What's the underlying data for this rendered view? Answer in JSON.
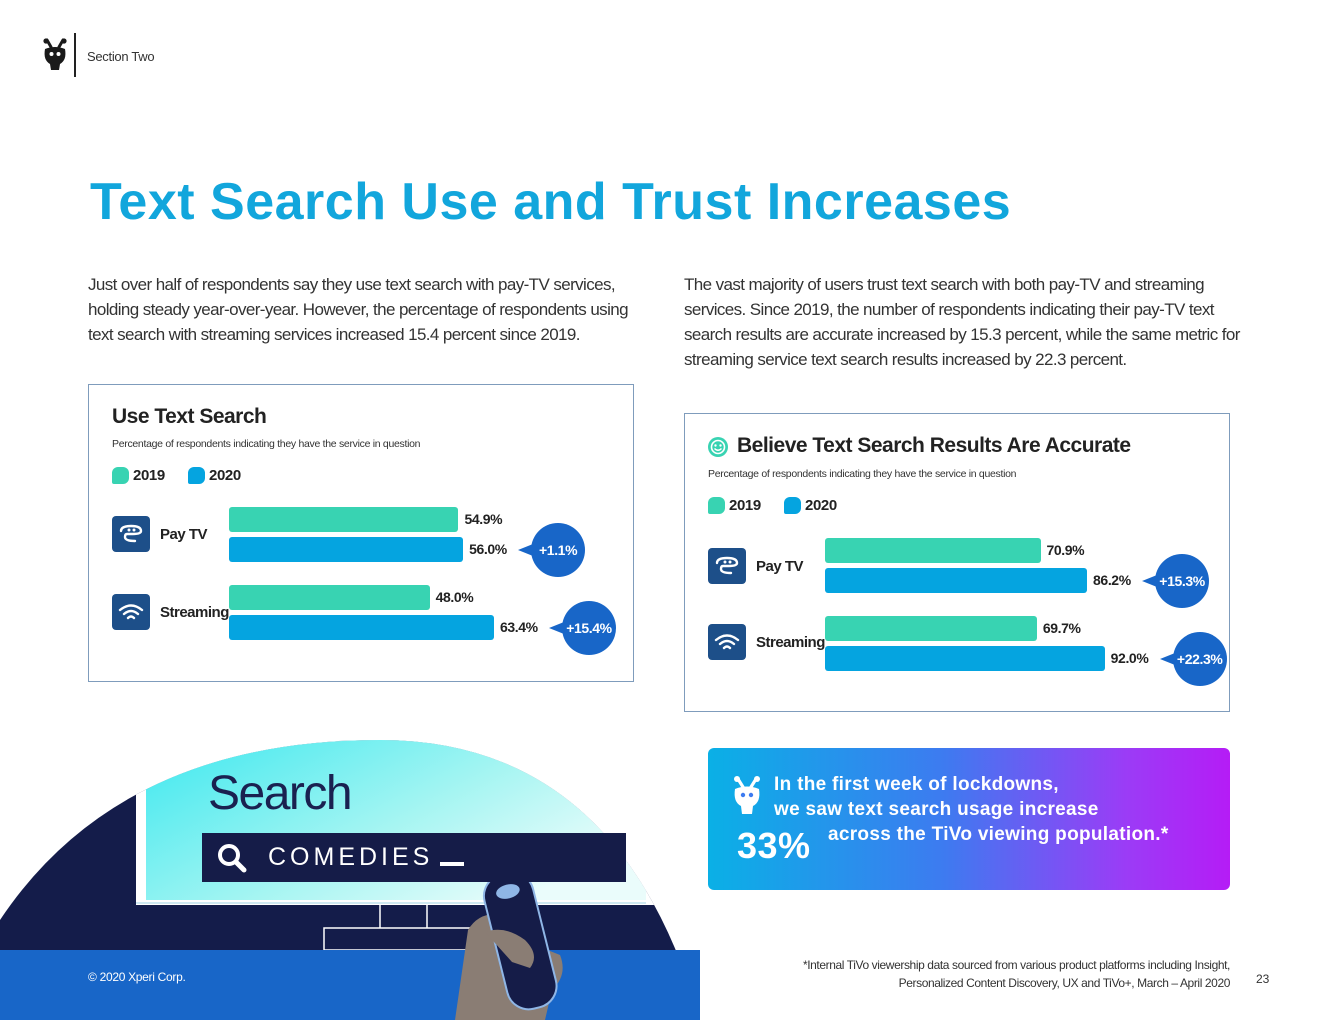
{
  "header": {
    "section": "Section Two"
  },
  "title": "Text Search Use and Trust Increases",
  "paragraph_left": "Just over half of respondents say they use text search with pay-TV services, holding steady year-over-year. However, the percentage of respondents using text search with streaming services increased 15.4 percent since 2019.",
  "paragraph_right": "The vast majority of users trust text search with both pay-TV and streaming services. Since 2019, the number of respondents indicating their pay-TV text search results are accurate increased by 15.3 percent,  while the same metric for streaming service text search results increased by 22.3 percent.",
  "colors": {
    "title": "#12a6dc",
    "y2019": "#38d3b2",
    "y2020": "#05a4e0",
    "delta": "#1866c8",
    "icon_bg": "#1d4f89"
  },
  "chart_data": [
    {
      "type": "bar",
      "title": "Use Text Search",
      "subtitle": "Percentage of respondents indicating they have the service in question",
      "categories": [
        "Pay TV",
        "Streaming"
      ],
      "series": [
        {
          "name": "2019",
          "values": [
            54.9,
            48.0
          ],
          "labels": [
            "54.9%",
            "48.0%"
          ]
        },
        {
          "name": "2020",
          "values": [
            56.0,
            63.4
          ],
          "labels": [
            "56.0%",
            "63.4%"
          ]
        }
      ],
      "deltas": [
        "+1.1%",
        "+15.4%"
      ],
      "xlim": [
        0,
        100
      ],
      "orientation": "horizontal",
      "legend": "top-left"
    },
    {
      "type": "bar",
      "title": "Believe Text Search Results Are Accurate",
      "subtitle": "Percentage of respondents indicating they have the service in question",
      "categories": [
        "Pay TV",
        "Streaming"
      ],
      "series": [
        {
          "name": "2019",
          "values": [
            70.9,
            69.7
          ],
          "labels": [
            "70.9%",
            "69.7%"
          ]
        },
        {
          "name": "2020",
          "values": [
            86.2,
            92.0
          ],
          "labels": [
            "86.2%",
            "92.0%"
          ]
        }
      ],
      "deltas": [
        "+15.3%",
        "+22.3%"
      ],
      "xlim": [
        0,
        100
      ],
      "orientation": "horizontal",
      "legend": "top-left"
    }
  ],
  "callout": {
    "line1": "In the first week of lockdowns,",
    "line2": "we saw text search usage increase",
    "percent": "33%",
    "line3": "across the TiVo viewing population.*"
  },
  "illustration": {
    "heading": "Search",
    "query": "COMEDIES"
  },
  "footer": {
    "copyright": "© 2020 Xperi Corp.",
    "footnote_line1": "*Internal TiVo viewership data sourced from various product platforms including Insight,",
    "footnote_line2": "Personalized Content Discovery, UX and TiVo+,  March – April 2020",
    "page_number": "23"
  }
}
